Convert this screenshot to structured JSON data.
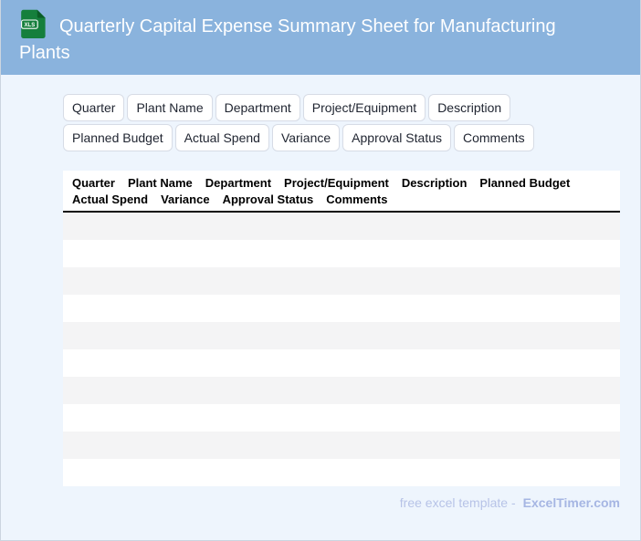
{
  "header": {
    "icon_label": "XLS",
    "title": "Quarterly Capital Expense Summary Sheet for Manufacturing Plants"
  },
  "chips": [
    "Quarter",
    "Plant Name",
    "Department",
    "Project/Equipment",
    "Description",
    "Planned Budget",
    "Actual Spend",
    "Variance",
    "Approval Status",
    "Comments"
  ],
  "table": {
    "columns": [
      "Quarter",
      "Plant Name",
      "Department",
      "Project/Equipment",
      "Description",
      "Planned Budget",
      "Actual Spend",
      "Variance",
      "Approval Status",
      "Comments"
    ],
    "row_count": 10,
    "rows": []
  },
  "footer": {
    "text": "free excel template -",
    "brand": "ExcelTimer.com"
  },
  "colors": {
    "header_background": "#8ab3dd",
    "page_background": "#eef5fd",
    "card_background": "#ffffff",
    "row_stripe": "#f4f4f5",
    "icon_green": "#157f3c",
    "icon_fold_green": "#0a5d26",
    "header_divider": "#0a0a0a",
    "chip_border": "#d7dce6",
    "footer_text": "#b7c3e7",
    "footer_brand": "#a6b6e3"
  }
}
